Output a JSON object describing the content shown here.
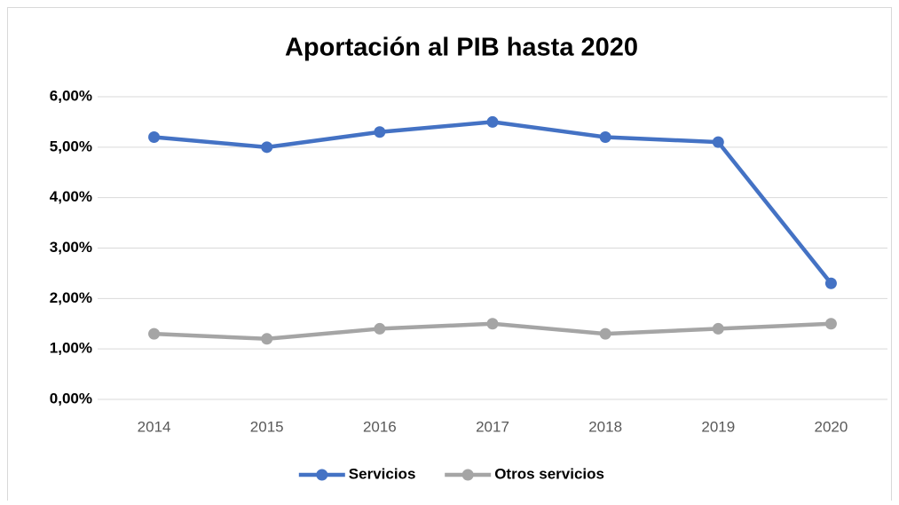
{
  "chart_data": {
    "type": "line",
    "title": "Aportación al PIB hasta 2020",
    "categories": [
      "2014",
      "2015",
      "2016",
      "2017",
      "2018",
      "2019",
      "2020"
    ],
    "series": [
      {
        "name": "Servicios",
        "color": "#4472c4",
        "values": [
          5.2,
          5.0,
          5.3,
          5.5,
          5.2,
          5.1,
          2.3
        ]
      },
      {
        "name": "Otros servicios",
        "color": "#a5a5a5",
        "values": [
          1.3,
          1.2,
          1.4,
          1.5,
          1.3,
          1.4,
          1.5
        ]
      }
    ],
    "ylim": [
      0,
      6
    ],
    "yticks": [
      {
        "value": 0,
        "label": "0,00%"
      },
      {
        "value": 1,
        "label": "1,00%"
      },
      {
        "value": 2,
        "label": "2,00%"
      },
      {
        "value": 3,
        "label": "3,00%"
      },
      {
        "value": 4,
        "label": "4,00%"
      },
      {
        "value": 5,
        "label": "5,00%"
      },
      {
        "value": 6,
        "label": "6,00%"
      }
    ],
    "grid": true,
    "legend": "bottom"
  }
}
